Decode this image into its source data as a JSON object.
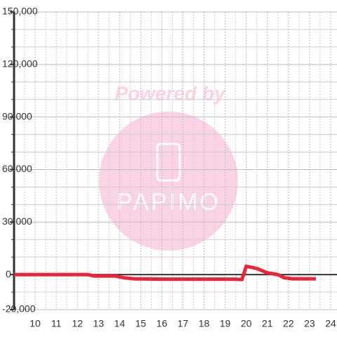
{
  "chart_data": {
    "type": "line",
    "watermark": {
      "line1": "Powered by",
      "line2": "PAPIMO"
    },
    "x": [
      9,
      12.5,
      12.8,
      13.8,
      14.2,
      14.7,
      16,
      19.4,
      19.8,
      20,
      20.5,
      21,
      21.5,
      21.8,
      22.2,
      23.3
    ],
    "series": [
      {
        "color": "#e8253a",
        "values": [
          0,
          0,
          -800,
          -800,
          -1800,
          -2400,
          -2600,
          -2600,
          -2800,
          4800,
          3500,
          1000,
          0,
          -1800,
          -2400,
          -2400
        ]
      }
    ],
    "xlim": [
      9,
      24.3
    ],
    "xticks": [
      10,
      11,
      12,
      13,
      14,
      15,
      16,
      17,
      18,
      19,
      20,
      21,
      22,
      23,
      24
    ],
    "xminor": [
      9.5,
      10.5,
      11.5,
      12.5,
      13.5,
      14.5,
      15.5,
      16.5,
      17.5,
      18.5,
      19.5,
      20.5,
      21.5,
      22.5,
      23.5
    ],
    "ylim": [
      -20000,
      150000
    ],
    "yticks": [
      {
        "value": -20000,
        "label": "-20,000"
      },
      0,
      {
        "value": 30000,
        "label": "30,000"
      },
      {
        "value": 60000,
        "label": "60,000"
      },
      {
        "value": 90000,
        "label": "90,000"
      },
      {
        "value": 120000,
        "label": "120,000"
      },
      {
        "value": 150000,
        "label": "150,000"
      }
    ],
    "yminor": [
      -10000,
      10000,
      20000,
      40000,
      50000,
      70000,
      80000,
      100000,
      110000,
      130000,
      140000
    ],
    "grid": true
  }
}
